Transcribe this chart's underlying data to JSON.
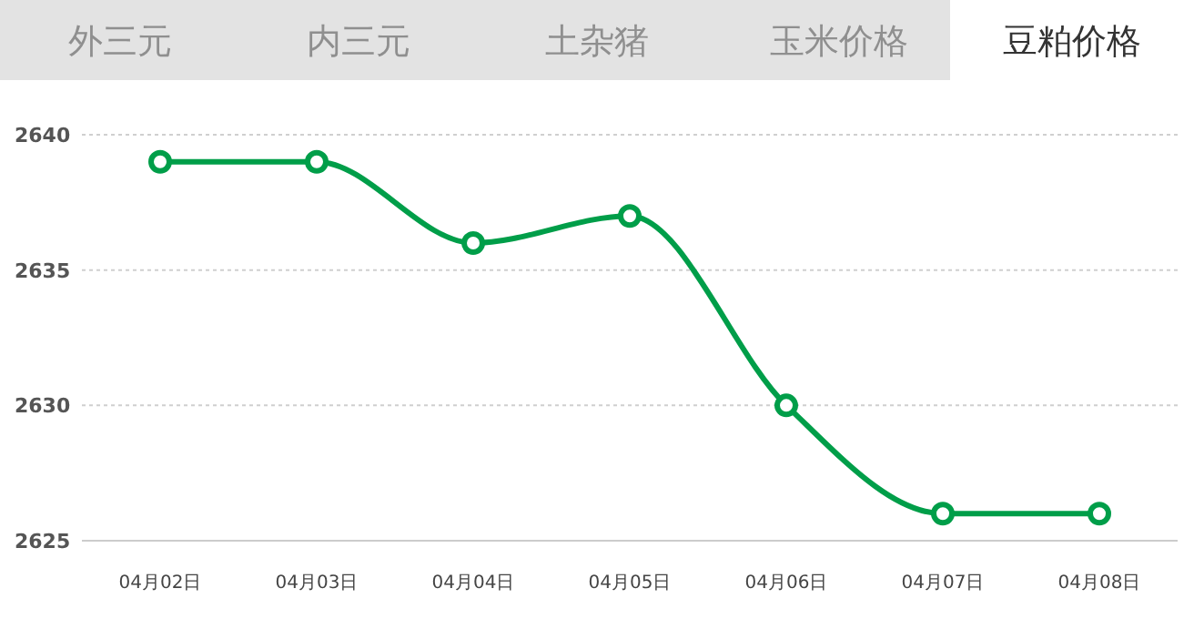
{
  "chart_data": {
    "type": "line",
    "title": "豆粕价格",
    "annotations": [
      "外三元",
      "内三元",
      "土杂猪",
      "玉米价格"
    ],
    "categories": [
      "04月02日",
      "04月03日",
      "04月04日",
      "04月05日",
      "04月06日",
      "04月07日",
      "04月08日"
    ],
    "series": [
      {
        "color": "#009e49",
        "values": [
          2639,
          2639,
          2636,
          2637,
          2630,
          2626,
          2626
        ]
      }
    ],
    "ylim": [
      2625,
      2640
    ],
    "yticks": [
      2625,
      2630,
      2635,
      2640
    ],
    "grid": "y",
    "marker": "circle",
    "line_style": "solid"
  }
}
